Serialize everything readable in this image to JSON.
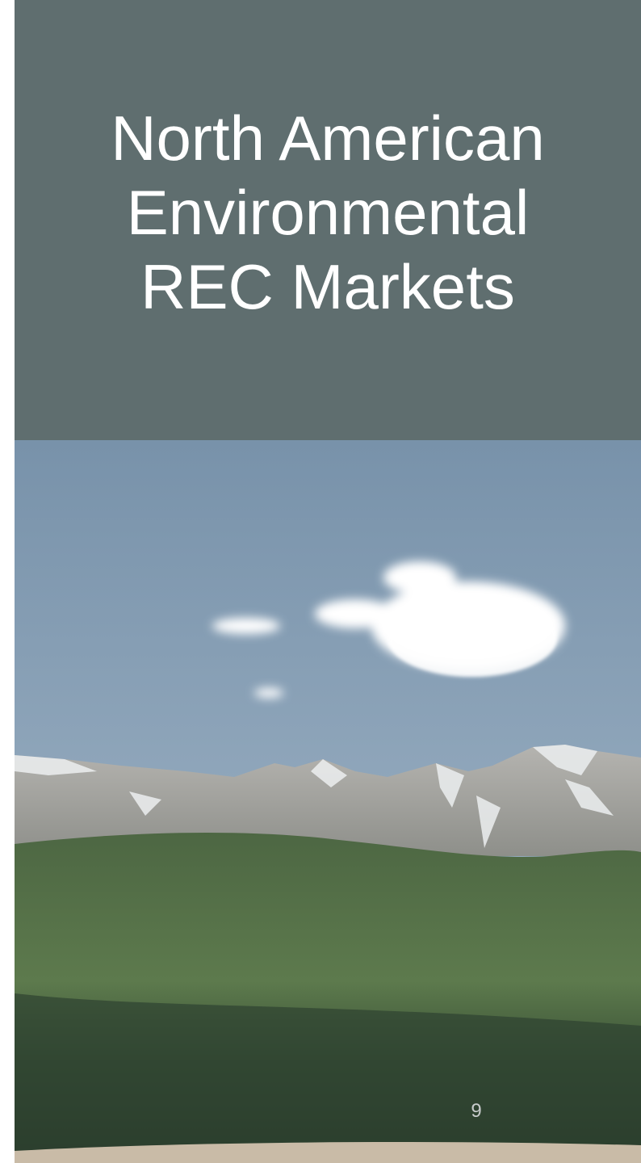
{
  "slide": {
    "title_lines": [
      "North American",
      "Environmental",
      "REC Markets"
    ],
    "page_number": "9"
  }
}
